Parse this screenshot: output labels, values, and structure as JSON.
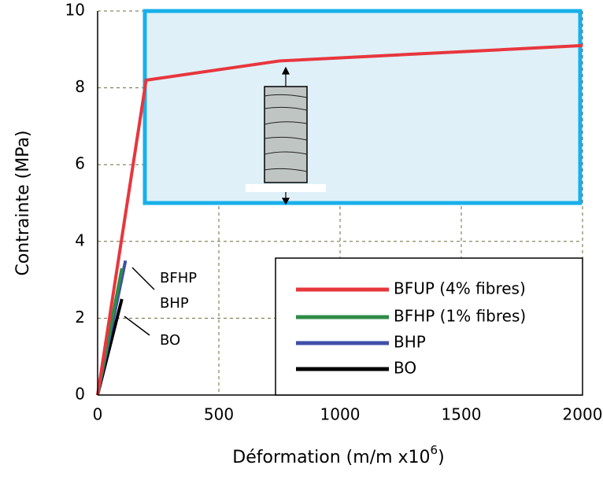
{
  "chart_data": {
    "type": "line",
    "y_label": "Contrainte (MPa)",
    "x_label": "Déformation (m/m x10",
    "x_label_exponent": "6",
    "x_label_end": ")",
    "xlim": [
      0,
      2000
    ],
    "xticks": [
      0,
      500,
      1000,
      1500,
      2000
    ],
    "ylim": [
      0,
      10
    ],
    "yticks": [
      0,
      2,
      4,
      6,
      8,
      10
    ],
    "grid": true,
    "legend": "lower right",
    "series": [
      {
        "name": "BFUP (4% fibres)",
        "color": "#e8363d",
        "x": [
          0,
          200,
          750,
          2000
        ],
        "values": [
          0,
          8.2,
          8.7,
          9.1
        ]
      },
      {
        "name": "BFHP (1% fibres)",
        "color": "#2e8b46",
        "x": [
          0,
          100
        ],
        "values": [
          0,
          3.3
        ]
      },
      {
        "name": "BHP",
        "color": "#3f4fa8",
        "x": [
          0,
          115
        ],
        "values": [
          0,
          3.5
        ]
      },
      {
        "name": "BO",
        "color": "#000000",
        "x": [
          0,
          100
        ],
        "values": [
          0,
          2.5
        ]
      }
    ],
    "annotations": [
      {
        "text": "BFHP",
        "color": "#2e8b46"
      },
      {
        "text": "BHP",
        "color": "#3f4fa8"
      },
      {
        "text": "BO",
        "color": "#000000"
      }
    ]
  }
}
